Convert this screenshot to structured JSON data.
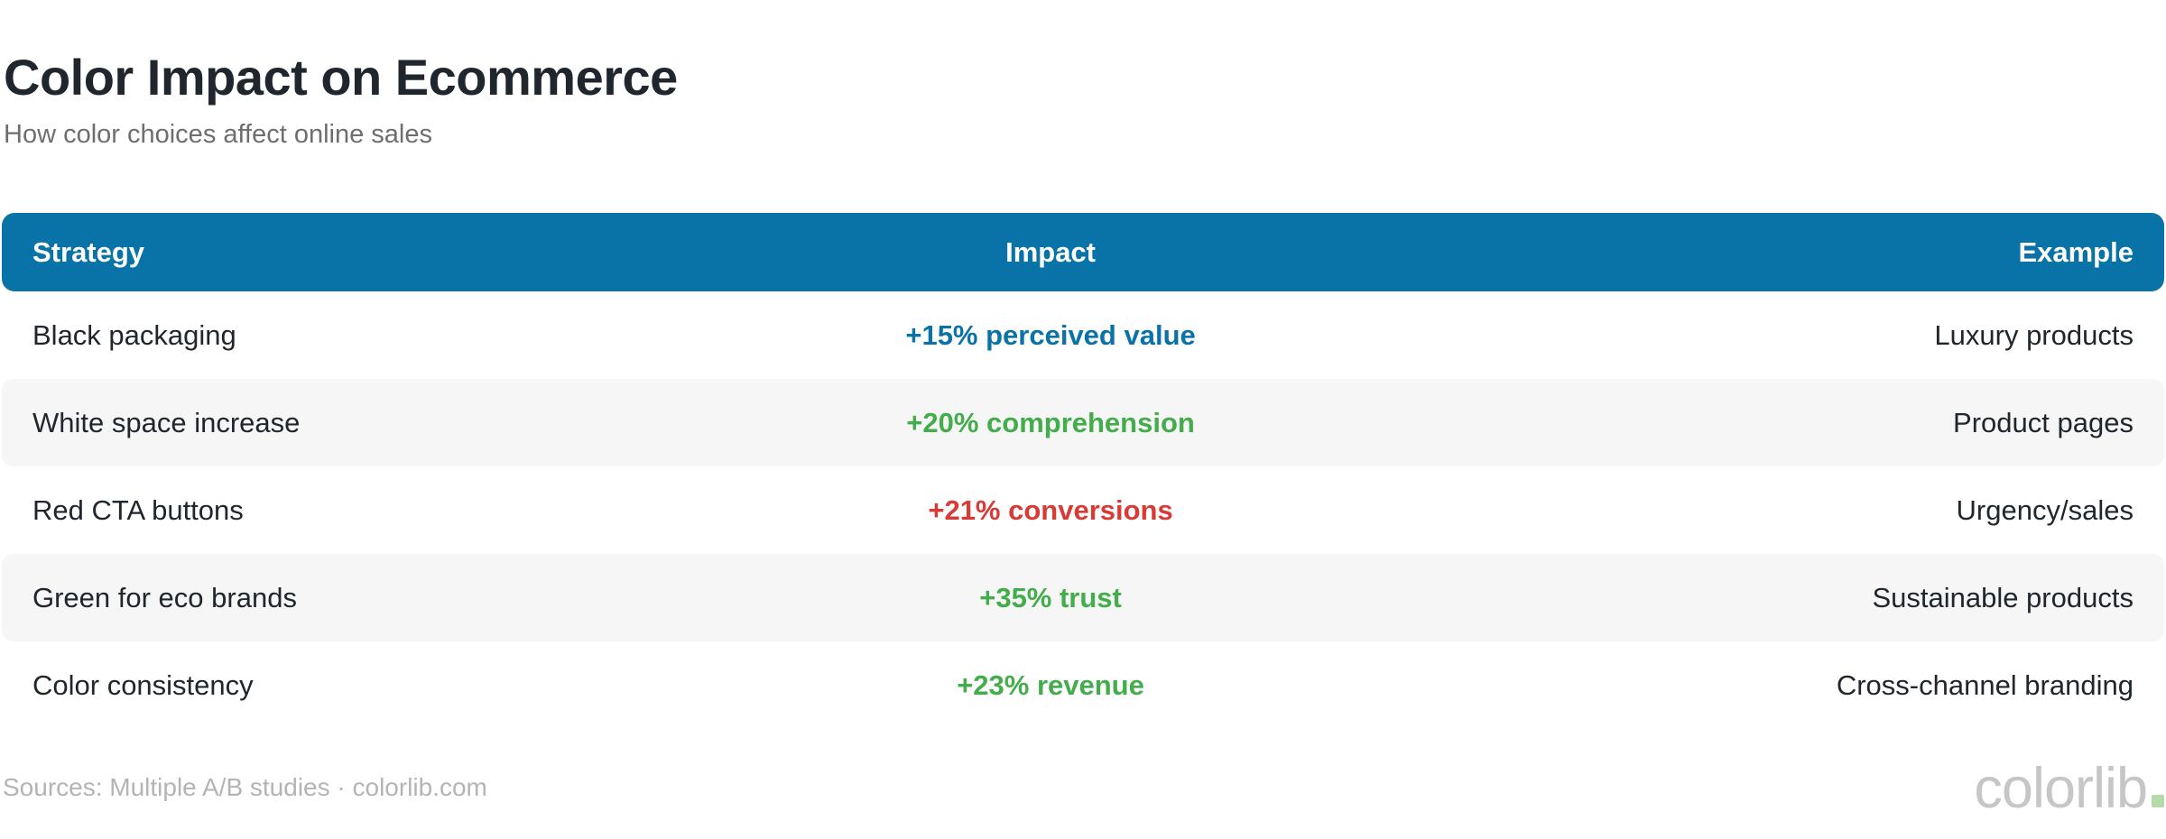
{
  "page": {
    "title": "Color Impact on Ecommerce",
    "subtitle": "How color choices affect online sales"
  },
  "chart_data": {
    "type": "table",
    "title": "Color Impact on Ecommerce",
    "subtitle": "How color choices affect online sales",
    "columns": [
      "Strategy",
      "Impact",
      "Example"
    ],
    "rows": [
      {
        "strategy": "Black packaging",
        "impact": "+15% perceived value",
        "value_pct": 15,
        "impact_color": "#0b72a8",
        "example": "Luxury products"
      },
      {
        "strategy": "White space increase",
        "impact": "+20% comprehension",
        "value_pct": 20,
        "impact_color": "#42ad4a",
        "example": "Product pages"
      },
      {
        "strategy": "Red CTA buttons",
        "impact": "+21% conversions",
        "value_pct": 21,
        "impact_color": "#d93a35",
        "example": "Urgency/sales"
      },
      {
        "strategy": "Green for eco brands",
        "impact": "+35% trust",
        "value_pct": 35,
        "impact_color": "#42ad4a",
        "example": "Sustainable products"
      },
      {
        "strategy": "Color consistency",
        "impact": "+23% revenue",
        "value_pct": 23,
        "impact_color": "#42ad4a",
        "example": "Cross-channel branding"
      }
    ],
    "header_bg": "#0973a8",
    "stripe_bg": "#f6f6f6",
    "layout": {
      "impact_column_align": "center",
      "example_column_align": "right",
      "grid": "off",
      "legend": "none"
    }
  },
  "footer": {
    "sources_text": "Sources: Multiple A/B studies · colorlib.com",
    "brand_text": "colorlib",
    "brand_dot_color": "#b5d9a8"
  }
}
